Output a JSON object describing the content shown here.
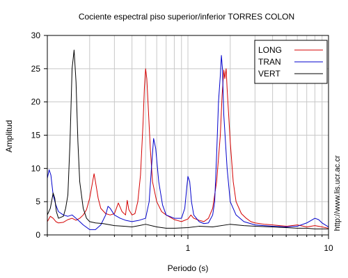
{
  "chart_data": {
    "type": "line",
    "title": "Cociente espectral piso superior/inferior  TORRES COLON",
    "xlabel": "Periodo (s)",
    "ylabel": "Amplitud",
    "x_scale": "log",
    "xlim": [
      0.1,
      10
    ],
    "ylim": [
      0,
      30
    ],
    "x_ticks": [
      1,
      10
    ],
    "y_ticks": [
      0,
      5,
      10,
      15,
      20,
      25,
      30
    ],
    "grid": true,
    "legend_position": "top-right",
    "credit": "http://www.lis.ucr.ac.cr",
    "series": [
      {
        "name": "LONG",
        "color": "#d40000",
        "points": [
          [
            0.1,
            2.0
          ],
          [
            0.105,
            2.8
          ],
          [
            0.11,
            2.5
          ],
          [
            0.115,
            2.0
          ],
          [
            0.12,
            1.8
          ],
          [
            0.13,
            1.9
          ],
          [
            0.14,
            2.3
          ],
          [
            0.15,
            2.5
          ],
          [
            0.16,
            2.2
          ],
          [
            0.17,
            2.5
          ],
          [
            0.18,
            3.0
          ],
          [
            0.19,
            3.8
          ],
          [
            0.2,
            5.5
          ],
          [
            0.21,
            8.0
          ],
          [
            0.215,
            9.2
          ],
          [
            0.22,
            8.0
          ],
          [
            0.23,
            5.5
          ],
          [
            0.24,
            4.0
          ],
          [
            0.26,
            3.2
          ],
          [
            0.28,
            3.0
          ],
          [
            0.3,
            3.2
          ],
          [
            0.32,
            4.8
          ],
          [
            0.34,
            3.5
          ],
          [
            0.36,
            3.0
          ],
          [
            0.37,
            5.2
          ],
          [
            0.38,
            3.8
          ],
          [
            0.4,
            3.0
          ],
          [
            0.42,
            3.2
          ],
          [
            0.44,
            5.0
          ],
          [
            0.46,
            9.0
          ],
          [
            0.48,
            17.0
          ],
          [
            0.49,
            22.0
          ],
          [
            0.5,
            25.0
          ],
          [
            0.51,
            23.5
          ],
          [
            0.52,
            20.0
          ],
          [
            0.54,
            13.0
          ],
          [
            0.56,
            8.0
          ],
          [
            0.6,
            5.0
          ],
          [
            0.65,
            3.5
          ],
          [
            0.7,
            3.0
          ],
          [
            0.8,
            2.3
          ],
          [
            0.9,
            2.0
          ],
          [
            1.0,
            2.4
          ],
          [
            1.05,
            3.0
          ],
          [
            1.1,
            2.5
          ],
          [
            1.2,
            2.2
          ],
          [
            1.3,
            2.0
          ],
          [
            1.4,
            2.5
          ],
          [
            1.5,
            4.0
          ],
          [
            1.6,
            8.0
          ],
          [
            1.7,
            15.0
          ],
          [
            1.75,
            21.0
          ],
          [
            1.8,
            24.8
          ],
          [
            1.83,
            23.5
          ],
          [
            1.87,
            25.0
          ],
          [
            1.9,
            22.0
          ],
          [
            2.0,
            14.0
          ],
          [
            2.1,
            8.0
          ],
          [
            2.2,
            5.0
          ],
          [
            2.4,
            3.2
          ],
          [
            2.6,
            2.5
          ],
          [
            2.8,
            2.0
          ],
          [
            3.0,
            1.8
          ],
          [
            3.5,
            1.6
          ],
          [
            4.0,
            1.5
          ],
          [
            5.0,
            1.3
          ],
          [
            6.0,
            1.5
          ],
          [
            7.0,
            1.2
          ],
          [
            8.0,
            1.4
          ],
          [
            9.0,
            1.2
          ],
          [
            10.0,
            1.0
          ]
        ]
      },
      {
        "name": "TRAN",
        "color": "#0000cc",
        "points": [
          [
            0.1,
            8.5
          ],
          [
            0.103,
            9.8
          ],
          [
            0.106,
            9.0
          ],
          [
            0.11,
            6.0
          ],
          [
            0.115,
            4.5
          ],
          [
            0.12,
            3.5
          ],
          [
            0.13,
            3.0
          ],
          [
            0.14,
            2.8
          ],
          [
            0.15,
            3.0
          ],
          [
            0.16,
            2.5
          ],
          [
            0.17,
            2.0
          ],
          [
            0.18,
            1.5
          ],
          [
            0.2,
            0.8
          ],
          [
            0.22,
            0.8
          ],
          [
            0.24,
            1.5
          ],
          [
            0.26,
            3.0
          ],
          [
            0.27,
            4.3
          ],
          [
            0.28,
            4.0
          ],
          [
            0.3,
            3.0
          ],
          [
            0.33,
            2.5
          ],
          [
            0.36,
            2.2
          ],
          [
            0.4,
            2.0
          ],
          [
            0.45,
            2.2
          ],
          [
            0.5,
            2.5
          ],
          [
            0.53,
            5.0
          ],
          [
            0.55,
            10.0
          ],
          [
            0.57,
            14.5
          ],
          [
            0.59,
            13.0
          ],
          [
            0.62,
            8.0
          ],
          [
            0.66,
            4.5
          ],
          [
            0.7,
            3.0
          ],
          [
            0.8,
            2.5
          ],
          [
            0.9,
            2.5
          ],
          [
            0.95,
            4.0
          ],
          [
            0.98,
            7.0
          ],
          [
            1.0,
            8.8
          ],
          [
            1.03,
            8.0
          ],
          [
            1.06,
            5.0
          ],
          [
            1.1,
            3.0
          ],
          [
            1.2,
            2.0
          ],
          [
            1.3,
            1.7
          ],
          [
            1.4,
            1.8
          ],
          [
            1.5,
            3.0
          ],
          [
            1.55,
            5.0
          ],
          [
            1.6,
            12.0
          ],
          [
            1.65,
            20.0
          ],
          [
            1.7,
            24.0
          ],
          [
            1.73,
            27.0
          ],
          [
            1.76,
            25.0
          ],
          [
            1.8,
            18.0
          ],
          [
            1.9,
            10.0
          ],
          [
            2.0,
            5.0
          ],
          [
            2.2,
            3.0
          ],
          [
            2.5,
            2.0
          ],
          [
            3.0,
            1.5
          ],
          [
            4.0,
            1.3
          ],
          [
            5.0,
            1.2
          ],
          [
            6.0,
            1.3
          ],
          [
            7.0,
            1.8
          ],
          [
            8.0,
            2.5
          ],
          [
            8.5,
            2.3
          ],
          [
            9.0,
            1.8
          ],
          [
            10.0,
            1.2
          ]
        ]
      },
      {
        "name": "VERT",
        "color": "#000000",
        "points": [
          [
            0.1,
            3.0
          ],
          [
            0.105,
            4.0
          ],
          [
            0.11,
            6.3
          ],
          [
            0.113,
            5.5
          ],
          [
            0.116,
            3.5
          ],
          [
            0.12,
            2.5
          ],
          [
            0.13,
            2.8
          ],
          [
            0.135,
            4.0
          ],
          [
            0.14,
            6.0
          ],
          [
            0.145,
            14.0
          ],
          [
            0.15,
            25.0
          ],
          [
            0.155,
            27.8
          ],
          [
            0.16,
            23.0
          ],
          [
            0.165,
            14.0
          ],
          [
            0.17,
            8.0
          ],
          [
            0.18,
            4.0
          ],
          [
            0.19,
            2.5
          ],
          [
            0.2,
            2.0
          ],
          [
            0.22,
            1.8
          ],
          [
            0.25,
            1.7
          ],
          [
            0.3,
            1.4
          ],
          [
            0.35,
            1.3
          ],
          [
            0.4,
            1.2
          ],
          [
            0.45,
            1.4
          ],
          [
            0.5,
            1.6
          ],
          [
            0.6,
            1.2
          ],
          [
            0.7,
            1.0
          ],
          [
            0.8,
            1.0
          ],
          [
            1.0,
            1.1
          ],
          [
            1.2,
            1.3
          ],
          [
            1.5,
            1.2
          ],
          [
            2.0,
            1.6
          ],
          [
            2.5,
            1.4
          ],
          [
            3.0,
            1.3
          ],
          [
            4.0,
            1.2
          ],
          [
            5.0,
            1.1
          ],
          [
            6.0,
            1.0
          ],
          [
            7.0,
            1.0
          ],
          [
            8.0,
            0.9
          ],
          [
            10.0,
            0.9
          ]
        ]
      }
    ]
  }
}
